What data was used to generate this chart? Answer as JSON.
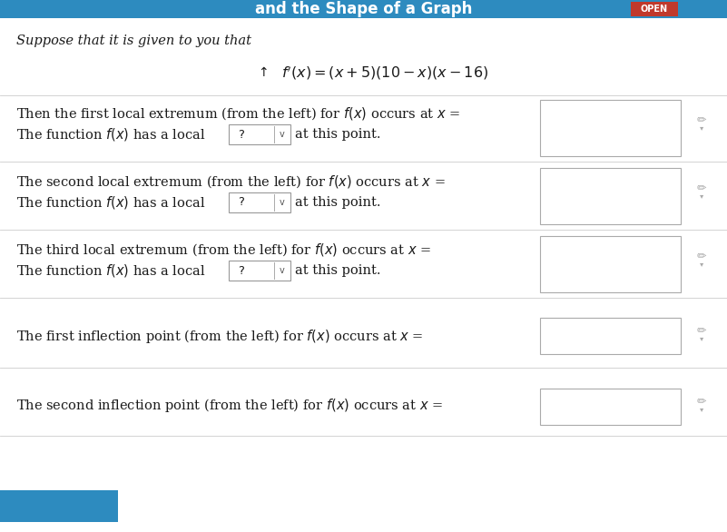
{
  "title_bar_color": "#2d8bbf",
  "title_text": "and the Shape of a Graph",
  "title_open_badge": "OPEN",
  "page_bg": "#dce8f0",
  "content_bg": "#ffffff",
  "intro_text": "Suppose that it is given to you that",
  "box_color": "#ffffff",
  "box_border": "#bbbbbb",
  "text_color": "#1a1a1a",
  "font_size": 10.5,
  "title_font_size": 12,
  "badge_bg": "#c0392b",
  "pencil_color": "#999999",
  "divider_color": "#cccccc",
  "section_bg_alt": "#f0f4f8"
}
